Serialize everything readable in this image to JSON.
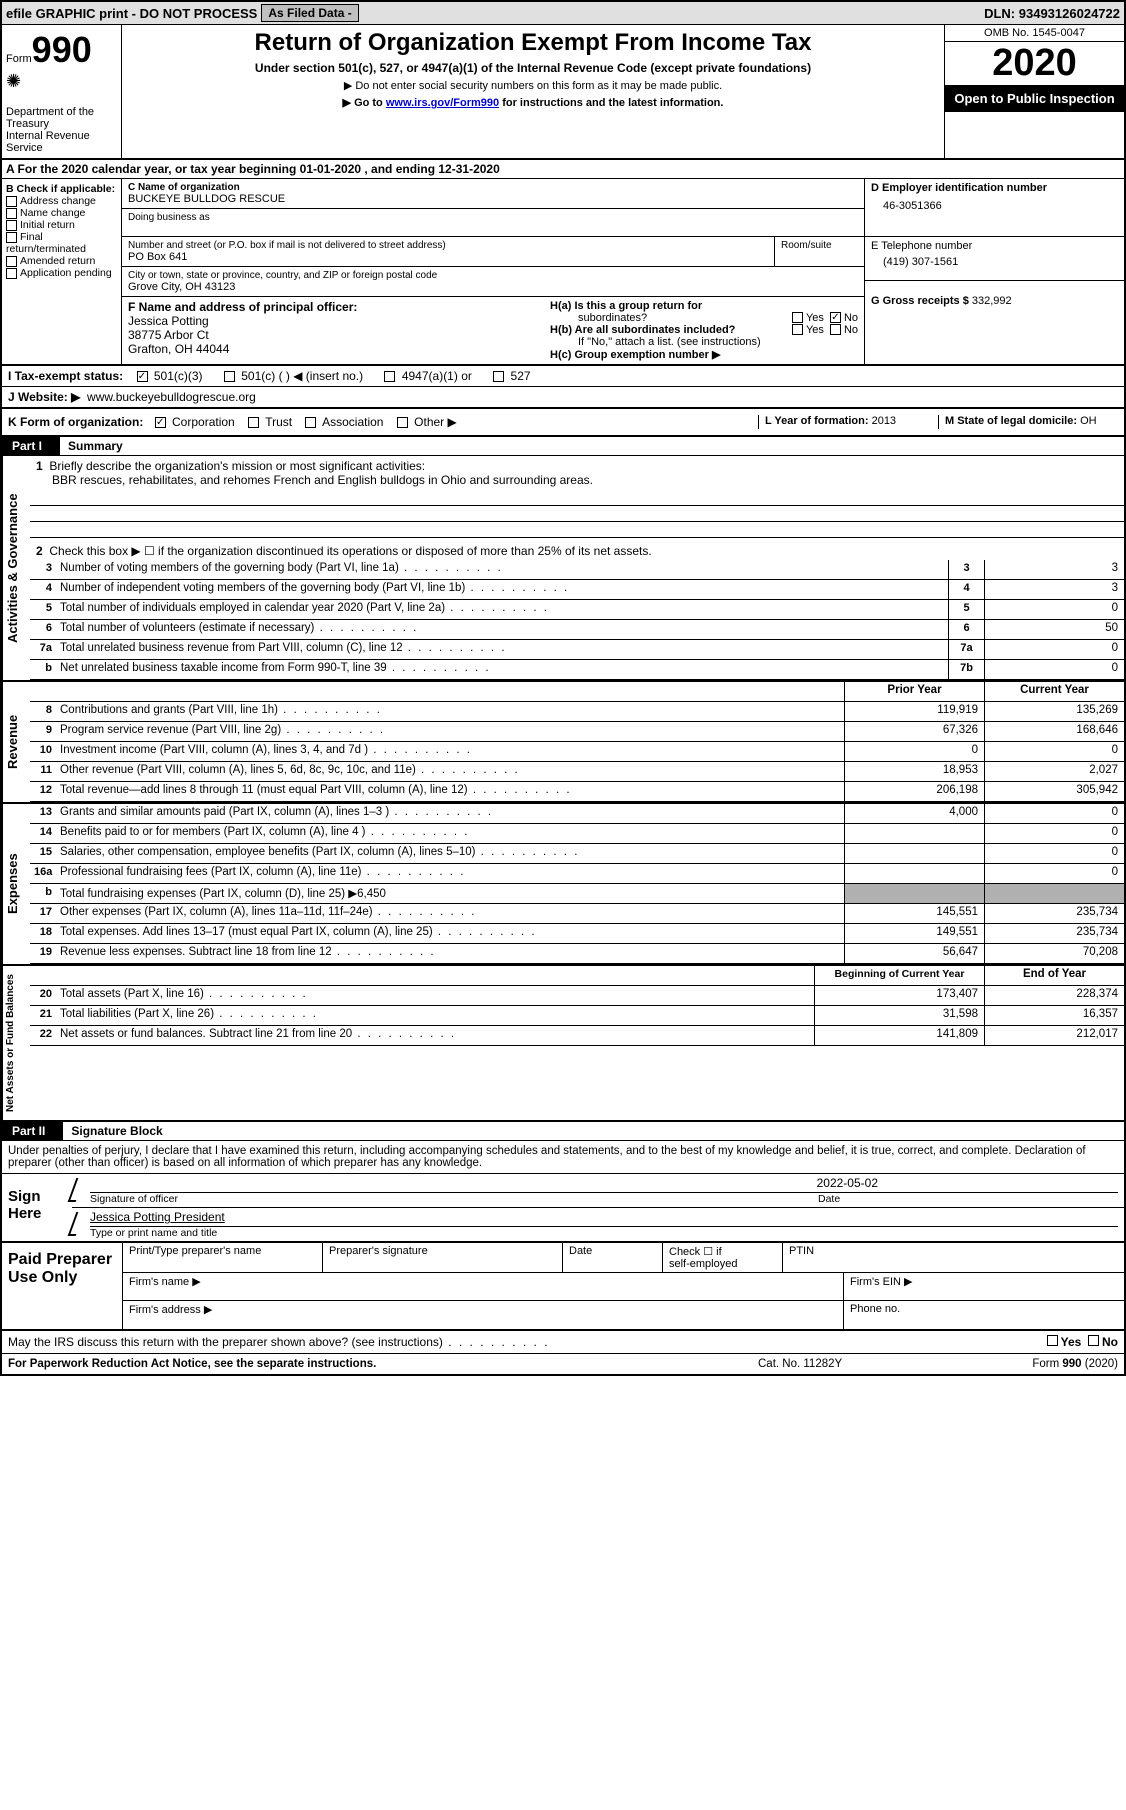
{
  "topbar": {
    "efile": "efile GRAPHIC print - DO NOT PROCESS",
    "asfiled_label": "As Filed Data -",
    "dln_label": "DLN:",
    "dln": "93493126024722"
  },
  "header": {
    "form_label": "Form",
    "form_no": "990",
    "dept": "Department of the Treasury",
    "irs": "Internal Revenue Service",
    "title": "Return of Organization Exempt From Income Tax",
    "sub1": "Under section 501(c), 527, or 4947(a)(1) of the Internal Revenue Code (except private foundations)",
    "sub2": "▶ Do not enter social security numbers on this form as it may be made public.",
    "sub3_pre": "▶ Go to ",
    "sub3_link": "www.irs.gov/Form990",
    "sub3_post": " for instructions and the latest information.",
    "omb": "OMB No. 1545-0047",
    "year": "2020",
    "open": "Open to Public Inspection"
  },
  "row_a": "A   For the 2020 calendar year, or tax year beginning 01-01-2020   , and ending 12-31-2020",
  "col_b": {
    "label": "B Check if applicable:",
    "items": [
      "Address change",
      "Name change",
      "Initial return",
      "Final return/terminated",
      "Amended return",
      "Application pending"
    ]
  },
  "col_c": {
    "name_label": "C Name of organization",
    "name": "BUCKEYE BULLDOG RESCUE",
    "dba_label": "Doing business as",
    "addr_label": "Number and street (or P.O. box if mail is not delivered to street address)",
    "room_label": "Room/suite",
    "addr": "PO Box 641",
    "city_label": "City or town, state or province, country, and ZIP or foreign postal code",
    "city": "Grove City, OH  43123"
  },
  "col_d": {
    "d_label": "D Employer identification number",
    "ein": "46-3051366",
    "e_label": "E Telephone number",
    "phone": "(419) 307-1561",
    "g_label": "G Gross receipts $",
    "gross": "332,992"
  },
  "row_f": {
    "f_label": "F  Name and address of principal officer:",
    "name": "Jessica Potting",
    "addr1": "38775 Arbor Ct",
    "addr2": "Grafton, OH  44044"
  },
  "col_h": {
    "ha": "H(a)  Is this a group return for",
    "ha2": "subordinates?",
    "hb": "H(b)  Are all subordinates included?",
    "hb2": "If \"No,\" attach a list. (see instructions)",
    "hc": "H(c)  Group exemption number ▶",
    "yes": "Yes",
    "no": "No"
  },
  "row_i": {
    "label": "I   Tax-exempt status:",
    "opts": [
      "501(c)(3)",
      "501(c) (   ) ◀ (insert no.)",
      "4947(a)(1) or",
      "527"
    ]
  },
  "row_j": {
    "label": "J   Website: ▶",
    "url": "www.buckeyebulldogrescue.org"
  },
  "row_k": {
    "label": "K Form of organization:",
    "opts": [
      "Corporation",
      "Trust",
      "Association",
      "Other ▶"
    ],
    "l_label": "L Year of formation:",
    "l_val": "2013",
    "m_label": "M State of legal domicile:",
    "m_val": "OH"
  },
  "part1": {
    "tab": "Part I",
    "title": "Summary"
  },
  "mission": {
    "q1": "Briefly describe the organization's mission or most significant activities:",
    "text": "BBR rescues, rehabilitates, and rehomes French and English bulldogs in Ohio and surrounding areas."
  },
  "activities": {
    "q2": "Check this box ▶ ☐ if the organization discontinued its operations or disposed of more than 25% of its net assets.",
    "lines": [
      {
        "n": "3",
        "t": "Number of voting members of the governing body (Part VI, line 1a)",
        "box": "3",
        "v": "3"
      },
      {
        "n": "4",
        "t": "Number of independent voting members of the governing body (Part VI, line 1b)",
        "box": "4",
        "v": "3"
      },
      {
        "n": "5",
        "t": "Total number of individuals employed in calendar year 2020 (Part V, line 2a)",
        "box": "5",
        "v": "0"
      },
      {
        "n": "6",
        "t": "Total number of volunteers (estimate if necessary)",
        "box": "6",
        "v": "50"
      },
      {
        "n": "7a",
        "t": "Total unrelated business revenue from Part VIII, column (C), line 12",
        "box": "7a",
        "v": "0"
      },
      {
        "n": "b",
        "t": "Net unrelated business taxable income from Form 990-T, line 39",
        "box": "7b",
        "v": "0"
      }
    ]
  },
  "yearcols": {
    "prior": "Prior Year",
    "current": "Current Year"
  },
  "revenue": [
    {
      "n": "8",
      "t": "Contributions and grants (Part VIII, line 1h)",
      "p": "119,919",
      "c": "135,269"
    },
    {
      "n": "9",
      "t": "Program service revenue (Part VIII, line 2g)",
      "p": "67,326",
      "c": "168,646"
    },
    {
      "n": "10",
      "t": "Investment income (Part VIII, column (A), lines 3, 4, and 7d )",
      "p": "0",
      "c": "0"
    },
    {
      "n": "11",
      "t": "Other revenue (Part VIII, column (A), lines 5, 6d, 8c, 9c, 10c, and 11e)",
      "p": "18,953",
      "c": "2,027"
    },
    {
      "n": "12",
      "t": "Total revenue—add lines 8 through 11 (must equal Part VIII, column (A), line 12)",
      "p": "206,198",
      "c": "305,942"
    }
  ],
  "expenses": [
    {
      "n": "13",
      "t": "Grants and similar amounts paid (Part IX, column (A), lines 1–3 )",
      "p": "4,000",
      "c": "0"
    },
    {
      "n": "14",
      "t": "Benefits paid to or for members (Part IX, column (A), line 4 )",
      "p": "",
      "c": "0"
    },
    {
      "n": "15",
      "t": "Salaries, other compensation, employee benefits (Part IX, column (A), lines 5–10)",
      "p": "",
      "c": "0"
    },
    {
      "n": "16a",
      "t": "Professional fundraising fees (Part IX, column (A), line 11e)",
      "p": "",
      "c": "0"
    },
    {
      "n": "b",
      "t": "Total fundraising expenses (Part IX, column (D), line 25) ▶6,450",
      "p": "grey",
      "c": "grey"
    },
    {
      "n": "17",
      "t": "Other expenses (Part IX, column (A), lines 11a–11d, 11f–24e)",
      "p": "145,551",
      "c": "235,734"
    },
    {
      "n": "18",
      "t": "Total expenses. Add lines 13–17 (must equal Part IX, column (A), line 25)",
      "p": "149,551",
      "c": "235,734"
    },
    {
      "n": "19",
      "t": "Revenue less expenses. Subtract line 18 from line 12",
      "p": "56,647",
      "c": "70,208"
    }
  ],
  "netcols": {
    "begin": "Beginning of Current Year",
    "end": "End of Year"
  },
  "netassets": [
    {
      "n": "20",
      "t": "Total assets (Part X, line 16)",
      "p": "173,407",
      "c": "228,374"
    },
    {
      "n": "21",
      "t": "Total liabilities (Part X, line 26)",
      "p": "31,598",
      "c": "16,357"
    },
    {
      "n": "22",
      "t": "Net assets or fund balances. Subtract line 21 from line 20",
      "p": "141,809",
      "c": "212,017"
    }
  ],
  "vlabels": {
    "act": "Activities & Governance",
    "rev": "Revenue",
    "exp": "Expenses",
    "net": "Net Assets or Fund Balances"
  },
  "part2": {
    "tab": "Part II",
    "title": "Signature Block"
  },
  "perjury": "Under penalties of perjury, I declare that I have examined this return, including accompanying schedules and statements, and to the best of my knowledge and belief, it is true, correct, and complete. Declaration of preparer (other than officer) is based on all information of which preparer has any knowledge.",
  "sign": {
    "here": "Sign Here",
    "sig_label": "Signature of officer",
    "date_label": "Date",
    "date": "2022-05-02",
    "name": "Jessica Potting President",
    "type_label": "Type or print name and title"
  },
  "prep": {
    "label": "Paid Preparer Use Only",
    "col1": "Print/Type preparer's name",
    "col2": "Preparer's signature",
    "col3": "Date",
    "col4a": "Check ☐ if",
    "col4b": "self-employed",
    "col5": "PTIN",
    "firm_name": "Firm's name  ▶",
    "firm_ein": "Firm's EIN ▶",
    "firm_addr": "Firm's address ▶",
    "phone": "Phone no."
  },
  "discuss": "May the IRS discuss this return with the preparer shown above? (see instructions)",
  "footer": {
    "left": "For Paperwork Reduction Act Notice, see the separate instructions.",
    "mid": "Cat. No. 11282Y",
    "right": "Form 990 (2020)"
  }
}
